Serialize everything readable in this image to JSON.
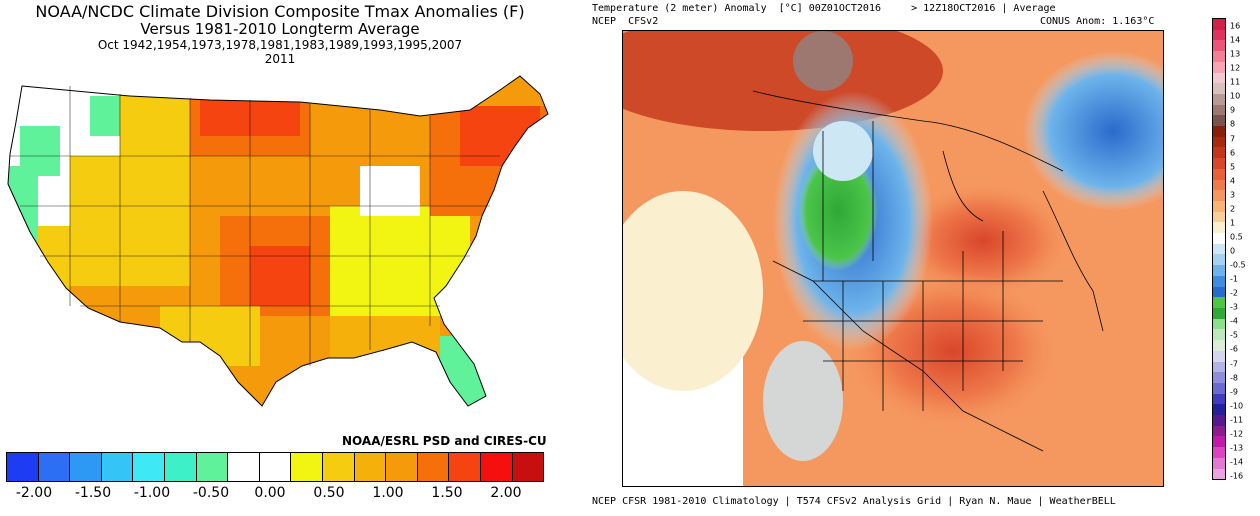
{
  "left": {
    "title_line1": "NOAA/NCDC Climate Division Composite Tmax Anomalies (F)",
    "title_line2": "Versus 1981-2010 Longterm Average",
    "title_line3": "Oct   1942,1954,1973,1978,1981,1983,1989,1993,1995,2007",
    "title_line4": "2011",
    "credit": "NOAA/ESRL PSD and CIRES-CU",
    "colorbar_colors": [
      "#1f3cf5",
      "#2c6ff5",
      "#2e98f5",
      "#34c4f5",
      "#3ee8f5",
      "#3ef0c8",
      "#5ff29b",
      "#ffffff",
      "#ffffff",
      "#f2f511",
      "#f5cc0f",
      "#f5b00c",
      "#f59a0a",
      "#f5700a",
      "#f54410",
      "#f50f0f",
      "#c80f0f"
    ],
    "colorbar_ticks": [
      "-2.00",
      "-1.50",
      "-1.00",
      "-0.50",
      "0.00",
      "0.50",
      "1.00",
      "1.50",
      "2.00"
    ]
  },
  "right": {
    "header_left": "Temperature (2 meter) Anomaly  [°C] 00Z01OCT2016     > 12Z18OCT2016 | Average",
    "model_label": "NCEP  CFSv2",
    "conus_anom": "CONUS Anom: 1.163°C",
    "footer": "NCEP CFSR 1981-2010 Climatology | T574 CFSv2 Analysis Grid | Ryan N. Maue | WeatherBELL",
    "colorbar_colors": [
      "#d21f47",
      "#e0325c",
      "#ec5577",
      "#f37f95",
      "#f7a5b4",
      "#f2c9d0",
      "#d8c1bd",
      "#b79a93",
      "#9c7870",
      "#7a544b",
      "#8b1e0b",
      "#a82810",
      "#c4361a",
      "#d9462a",
      "#e66038",
      "#ef7a4b",
      "#f5985f",
      "#f8b479",
      "#f9cf98",
      "#faf0d0",
      "#ffffff",
      "#cde7f5",
      "#a4d2f0",
      "#6db4eb",
      "#3d8ee0",
      "#2a6acc",
      "#4cc54a",
      "#2fa838",
      "#8de08a",
      "#bde8bb",
      "#d8eed8",
      "#d5d5ee",
      "#b3b3e5",
      "#8f8fd9",
      "#6a6ad0",
      "#3d3dbd",
      "#241f9a",
      "#551a8b",
      "#8e1a8b",
      "#c21aa8",
      "#d946c0",
      "#e27ad2",
      "#eaa3e0"
    ],
    "colorbar_ticks": [
      "16",
      "14",
      "13",
      "12",
      "11",
      "10",
      "9",
      "8",
      "7",
      "6",
      "5",
      "4",
      "3",
      "2",
      "1",
      "0.5",
      "0",
      "-0.5",
      "-1",
      "-2",
      "-3",
      "-4",
      "-5",
      "-6",
      "-7",
      "-8",
      "-9",
      "-10",
      "-11",
      "-12",
      "-13",
      "-14",
      "-16"
    ]
  }
}
